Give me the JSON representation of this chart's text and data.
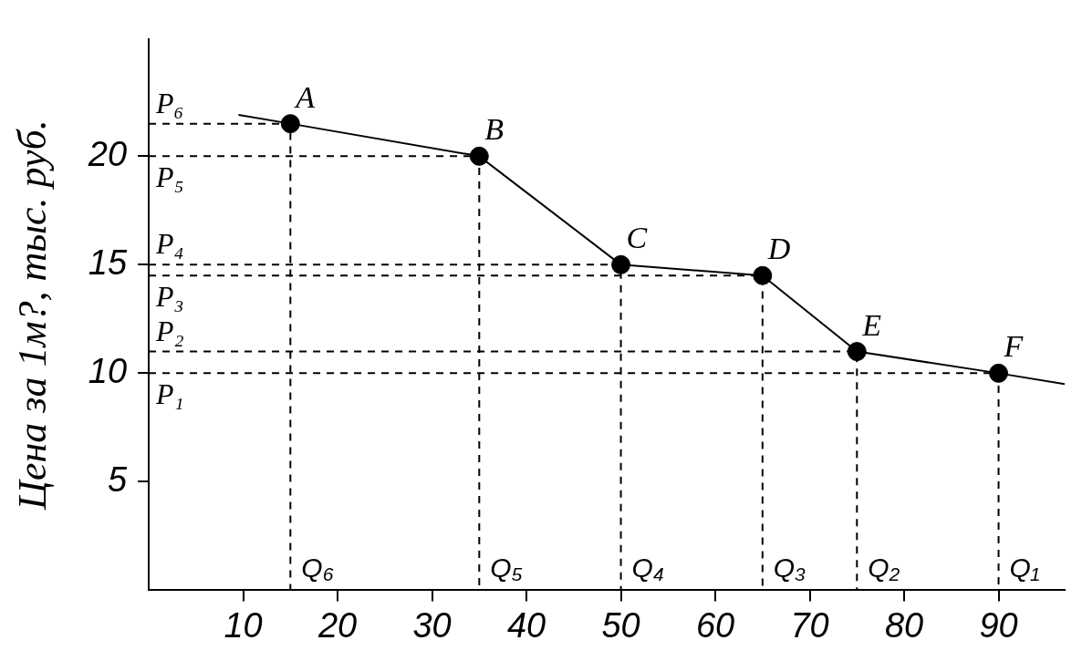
{
  "chart_data": {
    "type": "line",
    "ylabel": "Цена за 1м?, тыс. руб.",
    "xlim": [
      0,
      97
    ],
    "ylim": [
      0,
      25.4
    ],
    "xticks": [
      10,
      20,
      30,
      40,
      50,
      60,
      70,
      80,
      90
    ],
    "yticks": [
      5,
      10,
      15,
      20
    ],
    "grid": false,
    "legend": false,
    "series": [
      {
        "type": "line",
        "color": "#000000",
        "marker": "none",
        "line_style": "solid",
        "x": [
          9.5,
          15,
          35,
          50,
          65,
          75,
          90,
          97
        ],
        "values": [
          21.9,
          21.5,
          20,
          15,
          14.5,
          11,
          10,
          9.5
        ]
      },
      {
        "type": "scatter",
        "color": "#000000",
        "marker": "circle",
        "x": [
          15,
          35,
          50,
          65,
          75,
          90
        ],
        "values": [
          21.5,
          20,
          15,
          14.5,
          11,
          10
        ]
      },
      {
        "type": "line",
        "color": "#000000",
        "marker": "none",
        "line_style": "dashed",
        "x": [
          0,
          15,
          15
        ],
        "values": [
          21.5,
          21.5,
          0
        ]
      },
      {
        "type": "line",
        "color": "#000000",
        "marker": "none",
        "line_style": "dashed",
        "x": [
          0,
          35,
          35
        ],
        "values": [
          20,
          20,
          0
        ]
      },
      {
        "type": "line",
        "color": "#000000",
        "marker": "none",
        "line_style": "dashed",
        "x": [
          0,
          50,
          50
        ],
        "values": [
          15,
          15,
          0
        ]
      },
      {
        "type": "line",
        "color": "#000000",
        "marker": "none",
        "line_style": "dashed",
        "x": [
          0,
          65,
          65
        ],
        "values": [
          14.5,
          14.5,
          0
        ]
      },
      {
        "type": "line",
        "color": "#000000",
        "marker": "none",
        "line_style": "dashed",
        "x": [
          0,
          75,
          75
        ],
        "values": [
          11,
          11,
          0
        ]
      },
      {
        "type": "line",
        "color": "#000000",
        "marker": "none",
        "line_style": "dashed",
        "x": [
          0,
          90,
          90
        ],
        "values": [
          10,
          10,
          0
        ]
      }
    ],
    "annotations": [
      {
        "text": "A",
        "x": 15,
        "y": 21.5
      },
      {
        "text": "B",
        "x": 35,
        "y": 20
      },
      {
        "text": "C",
        "x": 50,
        "y": 15
      },
      {
        "text": "D",
        "x": 65,
        "y": 14.5
      },
      {
        "text": "E",
        "x": 75,
        "y": 11
      },
      {
        "text": "F",
        "x": 90,
        "y": 10
      },
      {
        "text": "P₁",
        "x": 0,
        "y": 10
      },
      {
        "text": "P₂",
        "x": 0,
        "y": 11
      },
      {
        "text": "P₃",
        "x": 0,
        "y": 14.5
      },
      {
        "text": "P₄",
        "x": 0,
        "y": 15
      },
      {
        "text": "P₅",
        "x": 0,
        "y": 20
      },
      {
        "text": "P₆",
        "x": 0,
        "y": 21.5
      },
      {
        "text": "Q₁",
        "x": 90,
        "y": 0
      },
      {
        "text": "Q₂",
        "x": 75,
        "y": 0
      },
      {
        "text": "Q₃",
        "x": 65,
        "y": 0
      },
      {
        "text": "Q₄",
        "x": 50,
        "y": 0
      },
      {
        "text": "Q₅",
        "x": 35,
        "y": 0
      },
      {
        "text": "Q₆",
        "x": 15,
        "y": 0
      }
    ]
  }
}
